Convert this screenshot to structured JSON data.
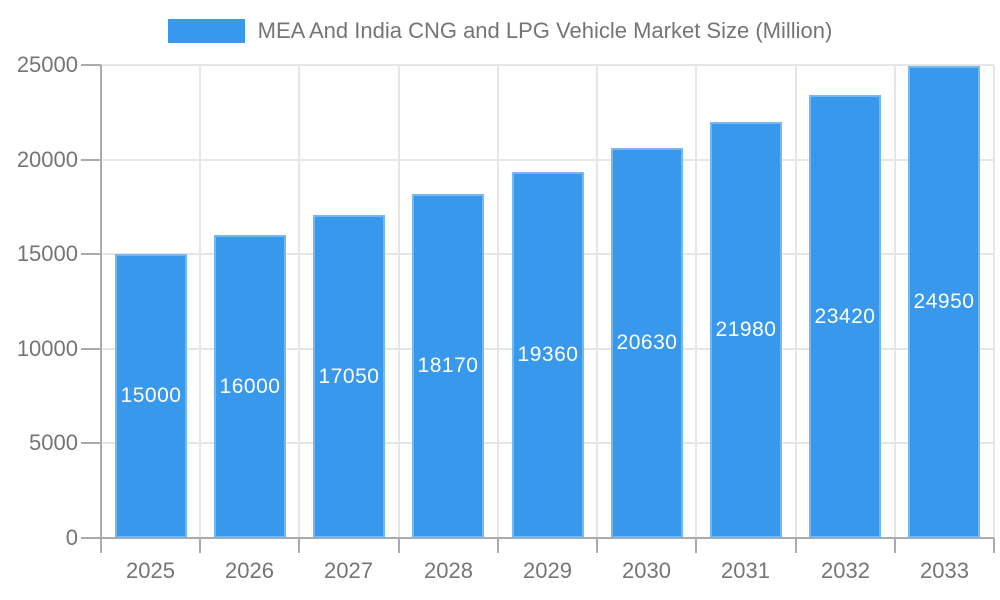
{
  "chart_data": {
    "type": "bar",
    "title": "MEA And India CNG and LPG Vehicle Market Size (Million)",
    "categories": [
      "2025",
      "2026",
      "2027",
      "2028",
      "2029",
      "2030",
      "2031",
      "2032",
      "2033"
    ],
    "values": [
      15000,
      16000,
      17050,
      18170,
      19360,
      20630,
      21980,
      23420,
      24950
    ],
    "data_labels": [
      "15000",
      "16000",
      "17050",
      "18170",
      "19360",
      "20630",
      "21980",
      "23420",
      "24950"
    ],
    "y_ticks": [
      0,
      5000,
      10000,
      15000,
      20000,
      25000
    ],
    "y_tick_labels": [
      "0",
      "5000",
      "10000",
      "15000",
      "20000",
      "25000"
    ],
    "ylim": [
      0,
      25000
    ],
    "xlabel": "",
    "ylabel": "",
    "legend_position": "top",
    "grid": "on",
    "colors": {
      "bar": "#3898EC",
      "bar_label": "#ffffff",
      "axis_text": "#757575",
      "grid": "#e6e6e6",
      "axis_line": "#ababab",
      "background": "#ffffff"
    }
  }
}
